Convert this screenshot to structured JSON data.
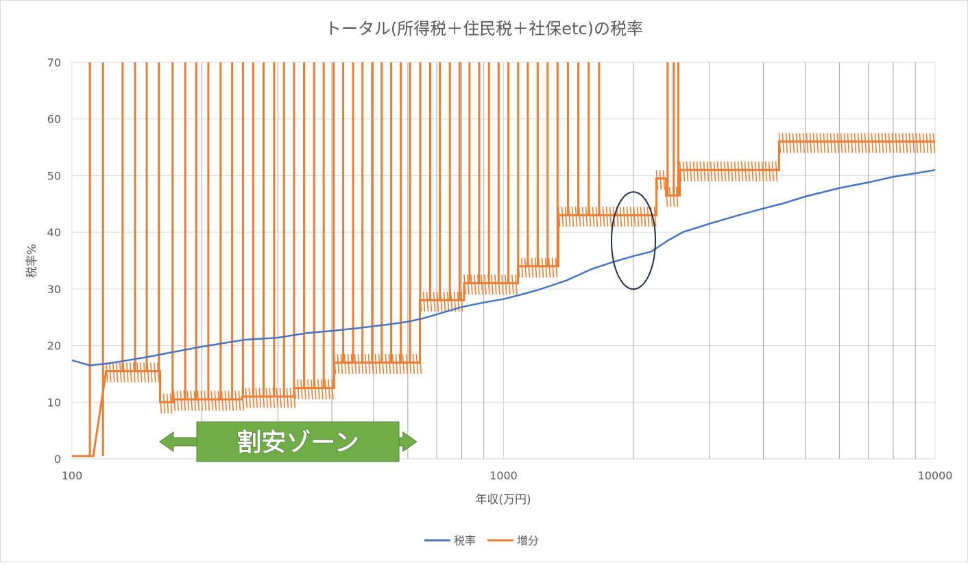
{
  "colors": {
    "tax_rate": "#4472C4",
    "increment": "#ED7D31",
    "zone": "#70AD47",
    "zone_border": "#507E32",
    "ellipse": "#1F2D4A",
    "grid": "#D9D9D9",
    "minor_grid": "#A6A6A6",
    "text": "#595959"
  },
  "chart_data": {
    "type": "line",
    "title": "トータル(所得税＋住民税＋社保etc)の税率",
    "xlabel": "年収(万円)",
    "ylabel": "税率%",
    "x_scale": "log",
    "xlim": [
      100,
      10000
    ],
    "ylim": [
      0,
      70
    ],
    "x_tick_labels": [
      "100",
      "1000",
      "10000"
    ],
    "y_tick_labels": [
      "0",
      "10",
      "20",
      "30",
      "40",
      "50",
      "60",
      "70"
    ],
    "y_ticks": [
      0,
      10,
      20,
      30,
      40,
      50,
      60,
      70
    ],
    "grid": true,
    "legend_position": "bottom",
    "series": [
      {
        "name": "税率",
        "x": [
          100,
          110,
          120,
          130,
          150,
          170,
          200,
          250,
          300,
          350,
          400,
          450,
          500,
          550,
          600,
          650,
          700,
          800,
          900,
          1000,
          1100,
          1200,
          1400,
          1600,
          1800,
          2000,
          2200,
          2400,
          2600,
          3000,
          3500,
          4000,
          4500,
          5000,
          6000,
          7000,
          8000,
          9000,
          10000
        ],
        "values": [
          17.4,
          16.5,
          16.8,
          17.2,
          18.0,
          18.8,
          19.8,
          21.0,
          21.4,
          22.2,
          22.6,
          23.0,
          23.4,
          23.8,
          24.2,
          24.8,
          25.5,
          26.8,
          27.6,
          28.2,
          29.0,
          29.8,
          31.5,
          33.5,
          34.8,
          35.8,
          36.6,
          38.5,
          40.0,
          41.5,
          43.0,
          44.2,
          45.2,
          46.3,
          47.8,
          48.8,
          49.8,
          50.4,
          51.0
        ]
      },
      {
        "name": "増分",
        "levels": [
          {
            "x0": 100,
            "x1": 112,
            "value": 0.5
          },
          {
            "x0": 120,
            "x1": 160,
            "value": 15.5
          },
          {
            "x0": 160,
            "x1": 172,
            "value": 10.0
          },
          {
            "x0": 172,
            "x1": 248,
            "value": 10.5
          },
          {
            "x0": 248,
            "x1": 327,
            "value": 11.0
          },
          {
            "x0": 327,
            "x1": 405,
            "value": 12.5
          },
          {
            "x0": 405,
            "x1": 640,
            "value": 17.0
          },
          {
            "x0": 640,
            "x1": 810,
            "value": 28.0
          },
          {
            "x0": 810,
            "x1": 1080,
            "value": 31.0
          },
          {
            "x0": 1080,
            "x1": 1340,
            "value": 34.0
          },
          {
            "x0": 1340,
            "x1": 2260,
            "value": 43.0
          },
          {
            "x0": 2260,
            "x1": 2380,
            "value": 49.5
          },
          {
            "x0": 2380,
            "x1": 2560,
            "value": 46.5
          },
          {
            "x0": 2560,
            "x1": 4350,
            "value": 51.0
          },
          {
            "x0": 4350,
            "x1": 10000,
            "value": 56.0
          }
        ],
        "spikes_x": [
          110,
          118,
          131,
          140,
          149,
          159,
          171,
          183,
          194,
          207,
          221,
          235,
          249,
          263,
          278,
          294,
          310,
          327,
          345,
          364,
          383,
          404,
          425,
          448,
          471,
          496,
          522,
          549,
          578,
          607,
          641,
          676,
          712,
          751,
          791,
          834,
          878,
          925,
          974,
          1026,
          1081,
          1138,
          1200,
          1265,
          1334,
          1410,
          1490,
          1575,
          1665,
          2400,
          2480,
          2540
        ]
      }
    ],
    "annotation_zone_label": "割安ゾーン",
    "annotation_zone_range": [
      162,
      620
    ],
    "annotation_ellipse": {
      "x_center": 2000,
      "y_center": 39.5
    }
  }
}
